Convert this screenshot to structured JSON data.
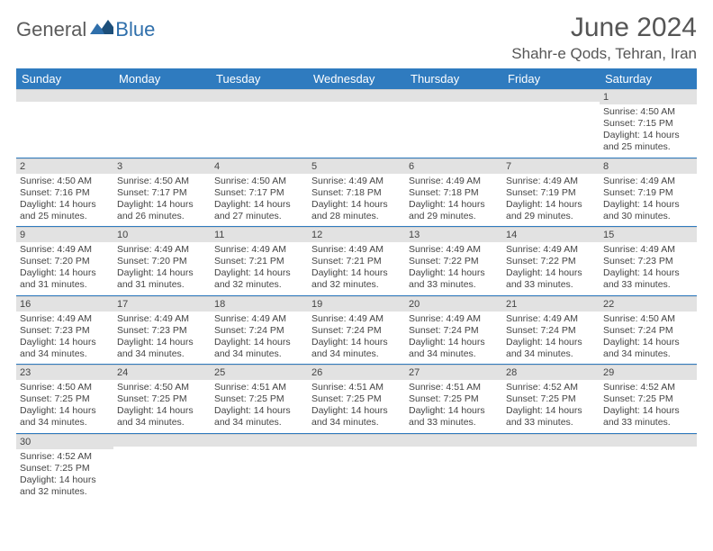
{
  "logo": {
    "general": "General",
    "blue": "Blue"
  },
  "title": "June 2024",
  "location": "Shahr-e Qods, Tehran, Iran",
  "colors": {
    "header_bg": "#2f7bbf",
    "header_text": "#ffffff",
    "daynum_bg": "#e2e2e2",
    "cell_border": "#2f7bbf",
    "body_text": "#444444",
    "title_text": "#555555"
  },
  "weekdays": [
    "Sunday",
    "Monday",
    "Tuesday",
    "Wednesday",
    "Thursday",
    "Friday",
    "Saturday"
  ],
  "weeks": [
    [
      {
        "day": "",
        "sunrise": "",
        "sunset": "",
        "daylight": ""
      },
      {
        "day": "",
        "sunrise": "",
        "sunset": "",
        "daylight": ""
      },
      {
        "day": "",
        "sunrise": "",
        "sunset": "",
        "daylight": ""
      },
      {
        "day": "",
        "sunrise": "",
        "sunset": "",
        "daylight": ""
      },
      {
        "day": "",
        "sunrise": "",
        "sunset": "",
        "daylight": ""
      },
      {
        "day": "",
        "sunrise": "",
        "sunset": "",
        "daylight": ""
      },
      {
        "day": "1",
        "sunrise": "Sunrise: 4:50 AM",
        "sunset": "Sunset: 7:15 PM",
        "daylight": "Daylight: 14 hours and 25 minutes."
      }
    ],
    [
      {
        "day": "2",
        "sunrise": "Sunrise: 4:50 AM",
        "sunset": "Sunset: 7:16 PM",
        "daylight": "Daylight: 14 hours and 25 minutes."
      },
      {
        "day": "3",
        "sunrise": "Sunrise: 4:50 AM",
        "sunset": "Sunset: 7:17 PM",
        "daylight": "Daylight: 14 hours and 26 minutes."
      },
      {
        "day": "4",
        "sunrise": "Sunrise: 4:50 AM",
        "sunset": "Sunset: 7:17 PM",
        "daylight": "Daylight: 14 hours and 27 minutes."
      },
      {
        "day": "5",
        "sunrise": "Sunrise: 4:49 AM",
        "sunset": "Sunset: 7:18 PM",
        "daylight": "Daylight: 14 hours and 28 minutes."
      },
      {
        "day": "6",
        "sunrise": "Sunrise: 4:49 AM",
        "sunset": "Sunset: 7:18 PM",
        "daylight": "Daylight: 14 hours and 29 minutes."
      },
      {
        "day": "7",
        "sunrise": "Sunrise: 4:49 AM",
        "sunset": "Sunset: 7:19 PM",
        "daylight": "Daylight: 14 hours and 29 minutes."
      },
      {
        "day": "8",
        "sunrise": "Sunrise: 4:49 AM",
        "sunset": "Sunset: 7:19 PM",
        "daylight": "Daylight: 14 hours and 30 minutes."
      }
    ],
    [
      {
        "day": "9",
        "sunrise": "Sunrise: 4:49 AM",
        "sunset": "Sunset: 7:20 PM",
        "daylight": "Daylight: 14 hours and 31 minutes."
      },
      {
        "day": "10",
        "sunrise": "Sunrise: 4:49 AM",
        "sunset": "Sunset: 7:20 PM",
        "daylight": "Daylight: 14 hours and 31 minutes."
      },
      {
        "day": "11",
        "sunrise": "Sunrise: 4:49 AM",
        "sunset": "Sunset: 7:21 PM",
        "daylight": "Daylight: 14 hours and 32 minutes."
      },
      {
        "day": "12",
        "sunrise": "Sunrise: 4:49 AM",
        "sunset": "Sunset: 7:21 PM",
        "daylight": "Daylight: 14 hours and 32 minutes."
      },
      {
        "day": "13",
        "sunrise": "Sunrise: 4:49 AM",
        "sunset": "Sunset: 7:22 PM",
        "daylight": "Daylight: 14 hours and 33 minutes."
      },
      {
        "day": "14",
        "sunrise": "Sunrise: 4:49 AM",
        "sunset": "Sunset: 7:22 PM",
        "daylight": "Daylight: 14 hours and 33 minutes."
      },
      {
        "day": "15",
        "sunrise": "Sunrise: 4:49 AM",
        "sunset": "Sunset: 7:23 PM",
        "daylight": "Daylight: 14 hours and 33 minutes."
      }
    ],
    [
      {
        "day": "16",
        "sunrise": "Sunrise: 4:49 AM",
        "sunset": "Sunset: 7:23 PM",
        "daylight": "Daylight: 14 hours and 34 minutes."
      },
      {
        "day": "17",
        "sunrise": "Sunrise: 4:49 AM",
        "sunset": "Sunset: 7:23 PM",
        "daylight": "Daylight: 14 hours and 34 minutes."
      },
      {
        "day": "18",
        "sunrise": "Sunrise: 4:49 AM",
        "sunset": "Sunset: 7:24 PM",
        "daylight": "Daylight: 14 hours and 34 minutes."
      },
      {
        "day": "19",
        "sunrise": "Sunrise: 4:49 AM",
        "sunset": "Sunset: 7:24 PM",
        "daylight": "Daylight: 14 hours and 34 minutes."
      },
      {
        "day": "20",
        "sunrise": "Sunrise: 4:49 AM",
        "sunset": "Sunset: 7:24 PM",
        "daylight": "Daylight: 14 hours and 34 minutes."
      },
      {
        "day": "21",
        "sunrise": "Sunrise: 4:49 AM",
        "sunset": "Sunset: 7:24 PM",
        "daylight": "Daylight: 14 hours and 34 minutes."
      },
      {
        "day": "22",
        "sunrise": "Sunrise: 4:50 AM",
        "sunset": "Sunset: 7:24 PM",
        "daylight": "Daylight: 14 hours and 34 minutes."
      }
    ],
    [
      {
        "day": "23",
        "sunrise": "Sunrise: 4:50 AM",
        "sunset": "Sunset: 7:25 PM",
        "daylight": "Daylight: 14 hours and 34 minutes."
      },
      {
        "day": "24",
        "sunrise": "Sunrise: 4:50 AM",
        "sunset": "Sunset: 7:25 PM",
        "daylight": "Daylight: 14 hours and 34 minutes."
      },
      {
        "day": "25",
        "sunrise": "Sunrise: 4:51 AM",
        "sunset": "Sunset: 7:25 PM",
        "daylight": "Daylight: 14 hours and 34 minutes."
      },
      {
        "day": "26",
        "sunrise": "Sunrise: 4:51 AM",
        "sunset": "Sunset: 7:25 PM",
        "daylight": "Daylight: 14 hours and 34 minutes."
      },
      {
        "day": "27",
        "sunrise": "Sunrise: 4:51 AM",
        "sunset": "Sunset: 7:25 PM",
        "daylight": "Daylight: 14 hours and 33 minutes."
      },
      {
        "day": "28",
        "sunrise": "Sunrise: 4:52 AM",
        "sunset": "Sunset: 7:25 PM",
        "daylight": "Daylight: 14 hours and 33 minutes."
      },
      {
        "day": "29",
        "sunrise": "Sunrise: 4:52 AM",
        "sunset": "Sunset: 7:25 PM",
        "daylight": "Daylight: 14 hours and 33 minutes."
      }
    ],
    [
      {
        "day": "30",
        "sunrise": "Sunrise: 4:52 AM",
        "sunset": "Sunset: 7:25 PM",
        "daylight": "Daylight: 14 hours and 32 minutes."
      },
      {
        "day": "",
        "sunrise": "",
        "sunset": "",
        "daylight": ""
      },
      {
        "day": "",
        "sunrise": "",
        "sunset": "",
        "daylight": ""
      },
      {
        "day": "",
        "sunrise": "",
        "sunset": "",
        "daylight": ""
      },
      {
        "day": "",
        "sunrise": "",
        "sunset": "",
        "daylight": ""
      },
      {
        "day": "",
        "sunrise": "",
        "sunset": "",
        "daylight": ""
      },
      {
        "day": "",
        "sunrise": "",
        "sunset": "",
        "daylight": ""
      }
    ]
  ]
}
